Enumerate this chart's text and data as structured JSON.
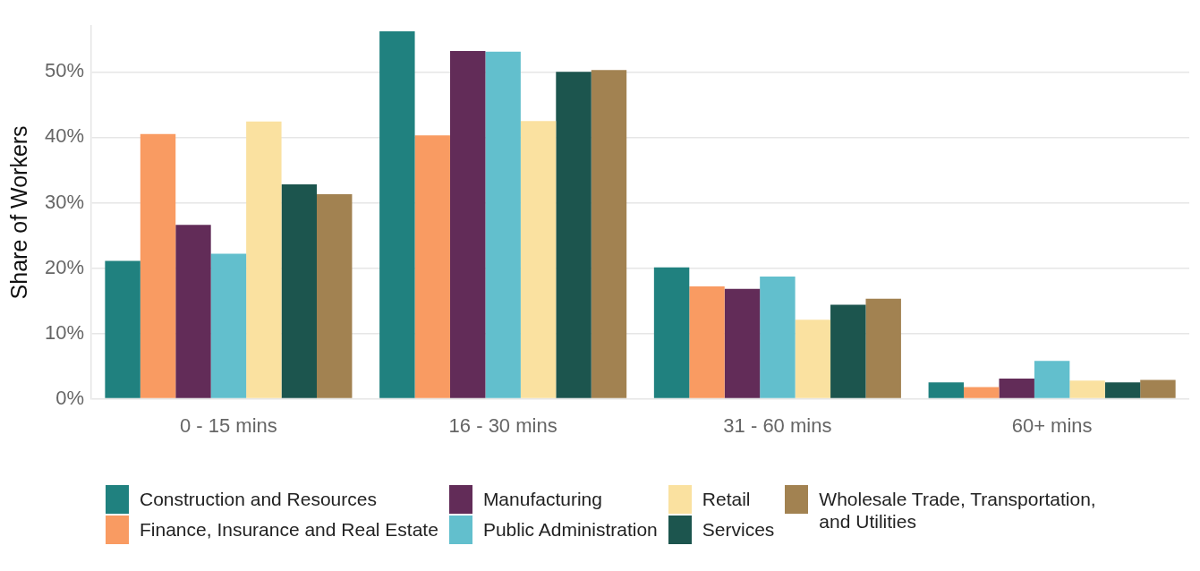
{
  "chart_data": {
    "type": "bar",
    "ylabel": "Share of Workers",
    "categories": [
      "0 - 15 mins",
      "16 - 30 mins",
      "31 - 60 mins",
      "60+ mins"
    ],
    "series": [
      {
        "name": "Construction and Resources",
        "color": "#20817f",
        "values": [
          21.1,
          56.2,
          20.1,
          2.5
        ]
      },
      {
        "name": "Finance, Insurance and Real Estate",
        "color": "#f99b62",
        "values": [
          40.5,
          40.3,
          17.2,
          1.8
        ]
      },
      {
        "name": "Manufacturing",
        "color": "#622c58",
        "values": [
          26.6,
          53.2,
          16.8,
          3.1
        ]
      },
      {
        "name": "Public Administration",
        "color": "#62bfcd",
        "values": [
          22.2,
          53.1,
          18.7,
          5.8
        ]
      },
      {
        "name": "Retail",
        "color": "#fae1a0",
        "values": [
          42.4,
          42.5,
          12.1,
          2.8
        ]
      },
      {
        "name": "Services",
        "color": "#1c554e",
        "values": [
          32.8,
          50.0,
          14.4,
          2.5
        ]
      },
      {
        "name": "Wholesale Trade, Transportation, and Utilities",
        "color": "#a28251",
        "values": [
          31.3,
          50.3,
          15.3,
          2.9
        ]
      }
    ],
    "ylim": [
      0,
      57
    ],
    "yticks": [
      {
        "value": 0,
        "label": "0%"
      },
      {
        "value": 10,
        "label": "10%"
      },
      {
        "value": 20,
        "label": "20%"
      },
      {
        "value": 30,
        "label": "30%"
      },
      {
        "value": 40,
        "label": "40%"
      },
      {
        "value": 50,
        "label": "50%"
      }
    ],
    "grid": "y",
    "legend": "bottom"
  }
}
